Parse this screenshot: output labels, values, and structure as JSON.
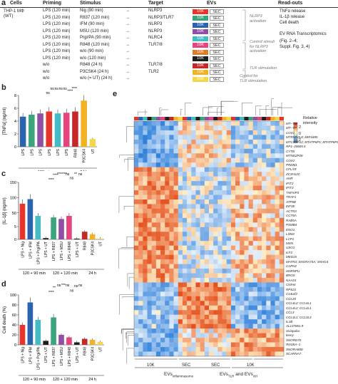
{
  "panel_a": {
    "letter": "a",
    "headers": {
      "cells": "Cells",
      "priming": "Priming",
      "stimulus": "Stimulus",
      "target": "Target",
      "evs": "EVs",
      "readouts": "Read-outs"
    },
    "cells_lines": [
      "THP-1 MΦ",
      "(WT)"
    ],
    "rows": [
      {
        "priming": "LPS (120 min)",
        "stimulus": "Nig (90 min)",
        "target": "NLRP3",
        "color": "#e7352b"
      },
      {
        "priming": "LPS (120 min)",
        "stimulus": "R837 (120 min)",
        "target": "NLRP3/TLR7",
        "color": "#3aa57c"
      },
      {
        "priming": "LPS (120 min)",
        "stimulus": "IFM (90 min)",
        "target": "NLRP3",
        "color": "#2b63ad"
      },
      {
        "priming": "LPS (120 min)",
        "stimulus": "MSU (120 min)",
        "target": "NLRP3",
        "color": "#8f4fa4"
      },
      {
        "priming": "LPS (120 min)",
        "stimulus": "Prgl/PA (90 min)",
        "target": "NLRC4",
        "color": "#43bcc7"
      },
      {
        "priming": "LPS (120 min)",
        "stimulus": "R848 (120 min)",
        "target": "TLR7/8",
        "color": "#e6447f"
      },
      {
        "priming": "LPS (120 min)",
        "stimulus": "w/o (90 min)",
        "target": "",
        "color": "#de7c2a"
      },
      {
        "priming": "LPS (120 min)",
        "stimulus": "w/o (120 min)",
        "target": "",
        "color": "#1f1f1f"
      },
      {
        "priming": "w/o",
        "stimulus": "R848 (24 h)",
        "target": "TLR7/8",
        "color": "#c62828"
      },
      {
        "priming": "w/o",
        "stimulus": "P3CSK4 (24 h)",
        "target": "TLR2",
        "color": "#f1b322"
      },
      {
        "priming": "w/o",
        "stimulus": "w/o (= UT) (24 h)",
        "target": "",
        "color": "#f2d84a"
      }
    ],
    "ev_10k": "10K",
    "ev_sec": "SEC",
    "notes": {
      "nlrp3": [
        "NLRP3",
        "activation"
      ],
      "control": [
        "Control stimuli",
        "for NLRP3",
        "activation"
      ],
      "tlr": [
        "TLR stimulation"
      ],
      "control_tlr": [
        "Control for",
        "TLR stimulation"
      ]
    },
    "readouts": [
      "TNFα release",
      "IL-1β release",
      "Cell death",
      "",
      "EV RNA Transcriptomics",
      "(Fig. 2–4;",
      "Suppl. Fig. 3, 4)"
    ]
  },
  "panel_b": {
    "letter": "b",
    "ylabel": "[TNFα] (ng/ml)",
    "yticks": [
      "0",
      "2",
      "4",
      "6",
      "8"
    ],
    "xlabels": [
      "LPS",
      "LPS",
      "LPS",
      "LPS",
      "LPS",
      "LPS",
      "R848",
      "P3CSK4",
      "UT"
    ],
    "group_labels": [
      "120 min",
      "24 h"
    ],
    "sig": [
      "ns",
      "ns",
      "ns",
      "ns",
      "ns",
      "****",
      "****"
    ],
    "chart_data": {
      "type": "bar",
      "values": [
        4.7,
        5.0,
        5.2,
        5.5,
        5.2,
        5.3,
        5.5,
        7.2,
        1.2
      ],
      "ylim": [
        0,
        8
      ]
    }
  },
  "panel_c": {
    "letter": "c",
    "ylabel": "[IL-1β] (ng/ml)",
    "yticks_top": [
      "150",
      "100",
      "50"
    ],
    "yticks_bottom": [
      "5",
      "0"
    ],
    "xlabels": [
      "LPS + Nig",
      "LPS + IFM",
      "LPS + Prgl/PA",
      "LPS + UT",
      "LPS + R837",
      "LPS + MSU",
      "LPS + R848",
      "LPS + UT",
      "R848",
      "P3CSK4",
      "UT"
    ],
    "group_labels": [
      "120 + 90 min",
      "120 + 120 min",
      "24 h"
    ],
    "sig": [
      "****",
      "****",
      "***",
      "****",
      "ns",
      "ns",
      "**",
      "ns"
    ],
    "chart_data": {
      "type": "bar",
      "values": [
        80,
        95,
        40,
        0.5,
        35,
        30,
        40,
        0.3,
        3.0,
        2.0,
        0.3
      ]
    }
  },
  "panel_d": {
    "letter": "d",
    "ylabel": "Cell death (%)",
    "yticks": [
      "0",
      "20",
      "40",
      "60",
      "80",
      "100"
    ],
    "xlabels": [
      "LPS + Nig",
      "LPS + IFM",
      "LPS + Prgl/PA",
      "LPS + UT",
      "LPS + R837",
      "LPS + MSU",
      "LPS + R848",
      "LPS + UT",
      "R848",
      "P3CSK4",
      "UT"
    ],
    "group_labels": [
      "120 + 90 min",
      "120 + 120 min",
      "24 h"
    ],
    "sig": [
      "****",
      "**",
      "ns",
      "***",
      "ns",
      "ns",
      "ns",
      "ns"
    ],
    "chart_data": {
      "type": "bar",
      "values": [
        40,
        85,
        50,
        8,
        55,
        20,
        15,
        5,
        12,
        10,
        6
      ],
      "ylim": [
        0,
        100
      ]
    }
  },
  "panel_e": {
    "letter": "e",
    "colorbar_label": [
      "Relative",
      "intensity"
    ],
    "colorbar_ticks": [
      "2",
      "0",
      "-2"
    ],
    "genes": [
      "MT–TM",
      "MT–TP",
      "COX1",
      "MTRNR2L8; MIR4485",
      "MTCO2P12; MTATP6P1; MTATP6P1",
      "RP1–20605.5",
      "CYTB",
      "MTND2P28",
      "COX2",
      "PRDM1",
      "CFLAR",
      "ZC3H12C",
      "AHR",
      "IFIT2",
      "IFIT3",
      "TNFAIP3",
      "TRAF1",
      "ATP5B",
      "EIF3E",
      "ACTR3",
      "CCT6A",
      "RAB5A",
      "PSMB4",
      "ENO1",
      "LSM4",
      "LCP1",
      "MSN",
      "USO1",
      "ILF2",
      "MED15",
      "MATR3; SNORA74A; SNHG4",
      "CAPN2",
      "HNRNPU",
      "BROX",
      "NAA15",
      "CNIH4",
      "RPS21",
      "C14orf2",
      "CCL20",
      "CCL4L2; CCL4L1",
      "CCL4L2; CCL4L1",
      "CCL3",
      "CCL3L1; CCL3L3",
      "IL1B",
      "AL137861.9",
      "viviapubu",
      "leeny",
      "SNORD70",
      "RNU5A–1",
      "SNORA80E",
      "SCARNA7"
    ],
    "col_labels": [
      "10K",
      "SEC",
      "SEC",
      "10K"
    ],
    "ev_group1": "EVs",
    "ev_group1_sub": "inflammasome",
    "ev_group2": "EVs",
    "ev_group2_sub": "TLR",
    "ev_group2_and": " and EVs",
    "ev_group2_sub2": "ctrl"
  }
}
